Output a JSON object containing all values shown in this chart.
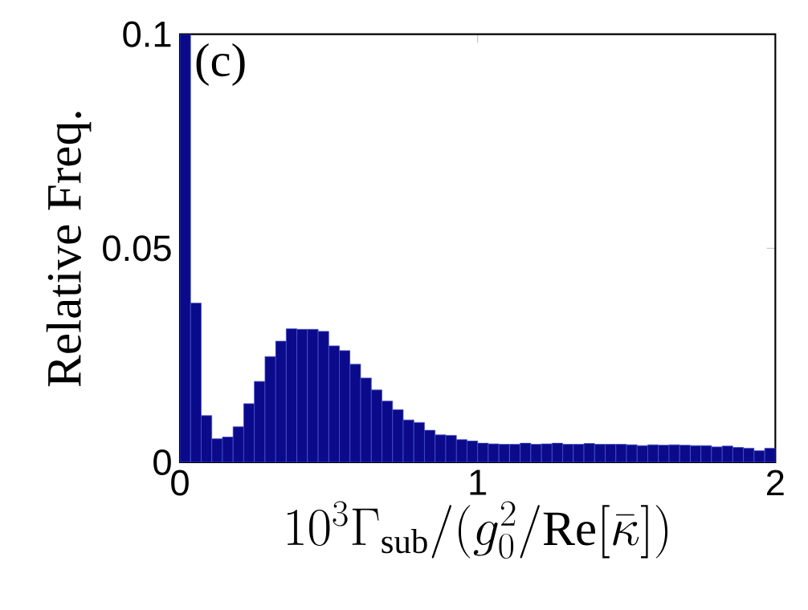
{
  "chart_data": {
    "type": "histogram",
    "xlabel": "10^3\\Gamma_{\\rm sub}/(g_0^2/{\\rm Re}[\\bar\\kappa])",
    "ylabel": "Relative Freq.",
    "annotations": [
      "(c)"
    ],
    "bins": [
      0,
      0.0357,
      0.0714,
      0.1071,
      0.1429,
      0.1786,
      0.2143,
      0.25,
      0.2857,
      0.3214,
      0.3571,
      0.3929,
      0.4286,
      0.4643,
      0.5,
      0.5357,
      0.5714,
      0.6071,
      0.6429,
      0.6786,
      0.7143,
      0.75,
      0.7857,
      0.8214,
      0.8571,
      0.8929,
      0.9286,
      0.9643,
      1,
      1.0357,
      1.0714,
      1.1071,
      1.1429,
      1.1786,
      1.2143,
      1.25,
      1.2857,
      1.3214,
      1.3571,
      1.3929,
      1.4286,
      1.4643,
      1.5,
      1.5357,
      1.5714,
      1.6071,
      1.6429,
      1.6786,
      1.7143,
      1.75,
      1.7857,
      1.8214,
      1.8571,
      1.8929,
      1.9286,
      1.9643,
      2
    ],
    "values": [
      0.1,
      0.0372,
      0.0109,
      0.0055,
      0.0059,
      0.0083,
      0.0137,
      0.0189,
      0.0247,
      0.0283,
      0.0312,
      0.0311,
      0.0311,
      0.0306,
      0.0272,
      0.0261,
      0.0229,
      0.0197,
      0.0169,
      0.0143,
      0.0123,
      0.0099,
      0.0093,
      0.0075,
      0.0064,
      0.0063,
      0.0053,
      0.005,
      0.0045,
      0.0043,
      0.0042,
      0.0042,
      0.0045,
      0.0042,
      0.0043,
      0.0045,
      0.0042,
      0.0042,
      0.0044,
      0.0042,
      0.0042,
      0.0042,
      0.0041,
      0.0039,
      0.0041,
      0.004,
      0.0041,
      0.004,
      0.0039,
      0.0039,
      0.0036,
      0.0038,
      0.0035,
      0.0033,
      0.0027,
      0.0033
    ],
    "color": "#0a0a8a",
    "xlim": [
      0,
      2
    ],
    "xticks": [
      0,
      1,
      2
    ],
    "ylim": [
      0,
      0.1
    ],
    "yticks": [
      0,
      0.05,
      0.1
    ]
  }
}
